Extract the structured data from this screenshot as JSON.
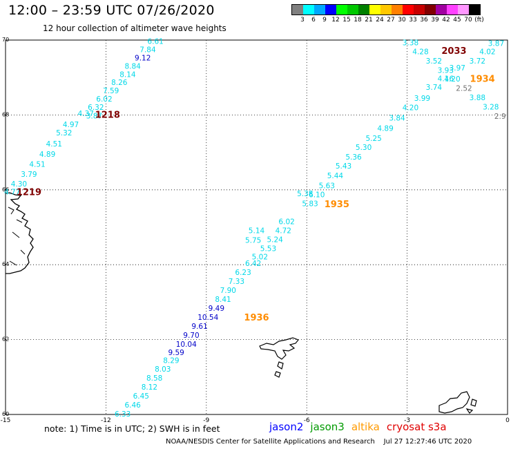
{
  "header": {
    "title": "12:00 – 23:59 UTC 07/26/2020",
    "subtitle": "12 hour collection of altimeter wave heights"
  },
  "legend": {
    "colors": [
      "#808080",
      "#00ffff",
      "#00a8ff",
      "#0000ff",
      "#00ff00",
      "#00c800",
      "#008000",
      "#ffff00",
      "#ffc800",
      "#ff8000",
      "#ff0000",
      "#c80000",
      "#800000",
      "#a000a0",
      "#ff40ff",
      "#ff96ff",
      "#000000"
    ],
    "ticks": [
      "3",
      "6",
      "9",
      "12",
      "15",
      "18",
      "21",
      "24",
      "27",
      "30",
      "33",
      "36",
      "39",
      "42",
      "45",
      "70",
      "(ft)"
    ]
  },
  "map": {
    "lon_labels": [
      "-15",
      "-12",
      "-9",
      "-6",
      "-3",
      "0"
    ],
    "lat_labels": [
      "70",
      "68",
      "66",
      "64",
      "62",
      "60"
    ],
    "readings": [
      {
        "lon": -10.52,
        "lat": 69.97,
        "v": "6.61",
        "c": "#00d8e8"
      },
      {
        "lon": -10.75,
        "lat": 69.75,
        "v": "7.84",
        "c": "#00d8e8"
      },
      {
        "lon": -10.9,
        "lat": 69.53,
        "v": "9.12",
        "c": "#0000c8"
      },
      {
        "lon": -11.2,
        "lat": 69.31,
        "v": "8.84",
        "c": "#00d8e8"
      },
      {
        "lon": -11.35,
        "lat": 69.09,
        "v": "8.14",
        "c": "#00d8e8"
      },
      {
        "lon": -11.6,
        "lat": 68.87,
        "v": "8.26",
        "c": "#00d8e8"
      },
      {
        "lon": -11.85,
        "lat": 68.65,
        "v": "7.59",
        "c": "#00d8e8"
      },
      {
        "lon": -12.05,
        "lat": 68.43,
        "v": "6.02",
        "c": "#00d8e8"
      },
      {
        "lon": -12.3,
        "lat": 68.21,
        "v": "6.32",
        "c": "#00d8e8"
      },
      {
        "lon": -12.6,
        "lat": 68.04,
        "v": "4.37",
        "c": "#00d8e8"
      },
      {
        "lon": -12.35,
        "lat": 67.98,
        "v": "3.87",
        "c": "#00d8e8"
      },
      {
        "lon": -13.05,
        "lat": 67.75,
        "v": "4.97",
        "c": "#00d8e8"
      },
      {
        "lon": -13.25,
        "lat": 67.53,
        "v": "5.32",
        "c": "#00d8e8"
      },
      {
        "lon": -13.55,
        "lat": 67.23,
        "v": "4.51",
        "c": "#00d8e8"
      },
      {
        "lon": -13.75,
        "lat": 66.96,
        "v": "4.89",
        "c": "#00d8e8"
      },
      {
        "lon": -14.05,
        "lat": 66.69,
        "v": "4.51",
        "c": "#00d8e8"
      },
      {
        "lon": -14.3,
        "lat": 66.42,
        "v": "3.79",
        "c": "#00d8e8"
      },
      {
        "lon": -14.6,
        "lat": 66.16,
        "v": "4.30",
        "c": "#00d8e8"
      },
      {
        "lon": -14.8,
        "lat": 65.95,
        "v": "4.77",
        "c": "#00d8e8"
      },
      {
        "lon": -7.6,
        "lat": 64.04,
        "v": "6.42",
        "c": "#00d8e8"
      },
      {
        "lon": -7.9,
        "lat": 63.8,
        "v": "6.23",
        "c": "#00d8e8"
      },
      {
        "lon": -8.1,
        "lat": 63.56,
        "v": "7.33",
        "c": "#00d8e8"
      },
      {
        "lon": -8.35,
        "lat": 63.32,
        "v": "7.90",
        "c": "#00d8e8"
      },
      {
        "lon": -8.5,
        "lat": 63.08,
        "v": "8.41",
        "c": "#00d8e8"
      },
      {
        "lon": -8.7,
        "lat": 62.84,
        "v": "9.49",
        "c": "#0000c8"
      },
      {
        "lon": -8.95,
        "lat": 62.6,
        "v": "10.54",
        "c": "#0000c8"
      },
      {
        "lon": -9.2,
        "lat": 62.36,
        "v": "9.61",
        "c": "#0000c8"
      },
      {
        "lon": -9.45,
        "lat": 62.12,
        "v": "9.70",
        "c": "#0000c8"
      },
      {
        "lon": -9.6,
        "lat": 61.88,
        "v": "10.04",
        "c": "#0000c8"
      },
      {
        "lon": -9.9,
        "lat": 61.66,
        "v": "9.59",
        "c": "#0000c8"
      },
      {
        "lon": -10.05,
        "lat": 61.45,
        "v": "8.29",
        "c": "#00d8e8"
      },
      {
        "lon": -10.3,
        "lat": 61.22,
        "v": "8.03",
        "c": "#00d8e8"
      },
      {
        "lon": -10.55,
        "lat": 60.98,
        "v": "8.58",
        "c": "#00d8e8"
      },
      {
        "lon": -10.7,
        "lat": 60.74,
        "v": "8.12",
        "c": "#00d8e8"
      },
      {
        "lon": -10.95,
        "lat": 60.5,
        "v": "6.45",
        "c": "#00d8e8"
      },
      {
        "lon": -11.2,
        "lat": 60.26,
        "v": "6.46",
        "c": "#00d8e8"
      },
      {
        "lon": -11.5,
        "lat": 60.02,
        "v": "6.33",
        "c": "#00d8e8"
      },
      {
        "lon": -2.9,
        "lat": 69.94,
        "v": "3.38",
        "c": "#00d8e8"
      },
      {
        "lon": -2.6,
        "lat": 69.7,
        "v": "4.28",
        "c": "#00d8e8"
      },
      {
        "lon": -2.2,
        "lat": 69.45,
        "v": "3.52",
        "c": "#00d8e8"
      },
      {
        "lon": -1.85,
        "lat": 69.2,
        "v": "3.93",
        "c": "#00d8e8"
      },
      {
        "lon": -1.5,
        "lat": 69.26,
        "v": "3.97",
        "c": "#00d8e8"
      },
      {
        "lon": -1.85,
        "lat": 68.98,
        "v": "4.16",
        "c": "#00d8e8"
      },
      {
        "lon": -1.65,
        "lat": 68.97,
        "v": "4.20",
        "c": "#00d8e8"
      },
      {
        "lon": -2.2,
        "lat": 68.75,
        "v": "3.74",
        "c": "#00d8e8"
      },
      {
        "lon": -2.55,
        "lat": 68.45,
        "v": "3.99",
        "c": "#00d8e8"
      },
      {
        "lon": -2.9,
        "lat": 68.2,
        "v": "4.20",
        "c": "#00d8e8"
      },
      {
        "lon": -3.3,
        "lat": 67.92,
        "v": "3.84",
        "c": "#00d8e8"
      },
      {
        "lon": -3.65,
        "lat": 67.65,
        "v": "4.89",
        "c": "#00d8e8"
      },
      {
        "lon": -4.0,
        "lat": 67.38,
        "v": "5.25",
        "c": "#00d8e8"
      },
      {
        "lon": -4.3,
        "lat": 67.14,
        "v": "5.30",
        "c": "#00d8e8"
      },
      {
        "lon": -4.6,
        "lat": 66.88,
        "v": "5.36",
        "c": "#00d8e8"
      },
      {
        "lon": -4.9,
        "lat": 66.64,
        "v": "5.43",
        "c": "#00d8e8"
      },
      {
        "lon": -5.15,
        "lat": 66.38,
        "v": "5.44",
        "c": "#00d8e8"
      },
      {
        "lon": -5.4,
        "lat": 66.12,
        "v": "5.63",
        "c": "#00d8e8"
      },
      {
        "lon": -5.7,
        "lat": 65.88,
        "v": "6.10",
        "c": "#00d8e8"
      },
      {
        "lon": -5.9,
        "lat": 65.64,
        "v": "5.83",
        "c": "#00d8e8"
      },
      {
        "lon": -6.05,
        "lat": 65.9,
        "v": "5.38",
        "c": "#00d8e8"
      },
      {
        "lon": -6.6,
        "lat": 65.16,
        "v": "6.02",
        "c": "#00d8e8"
      },
      {
        "lon": -6.7,
        "lat": 64.92,
        "v": "4.72",
        "c": "#00d8e8"
      },
      {
        "lon": -6.95,
        "lat": 64.68,
        "v": "5.24",
        "c": "#00d8e8"
      },
      {
        "lon": -7.15,
        "lat": 64.44,
        "v": "5.53",
        "c": "#00d8e8"
      },
      {
        "lon": -7.4,
        "lat": 64.22,
        "v": "5.02",
        "c": "#00d8e8"
      },
      {
        "lon": -7.5,
        "lat": 64.92,
        "v": "5.14",
        "c": "#00d8e8"
      },
      {
        "lon": -7.6,
        "lat": 64.66,
        "v": "5.75",
        "c": "#00d8e8"
      },
      {
        "lon": -0.1,
        "lat": 69.92,
        "v": "3.87",
        "c": "#00d8e8"
      },
      {
        "lon": -0.6,
        "lat": 69.7,
        "v": "4.02",
        "c": "#00d8e8"
      },
      {
        "lon": -0.9,
        "lat": 69.45,
        "v": "3.72",
        "c": "#00d8e8"
      },
      {
        "lon": -1.3,
        "lat": 68.72,
        "v": "2.52",
        "c": "#707070"
      },
      {
        "lon": -0.9,
        "lat": 68.47,
        "v": "3.88",
        "c": "#00d8e8"
      },
      {
        "lon": -0.5,
        "lat": 68.22,
        "v": "3.28",
        "c": "#00d8e8"
      },
      {
        "lon": -0.05,
        "lat": 67.97,
        "v": "2.9",
        "c": "#707070"
      }
    ],
    "times": [
      {
        "lon": -11.95,
        "lat": 68.02,
        "t": "1218",
        "c": "#800000"
      },
      {
        "lon": -14.3,
        "lat": 65.95,
        "t": "1219",
        "c": "#800000"
      },
      {
        "lon": -1.6,
        "lat": 69.72,
        "t": "2033",
        "c": "#800000"
      },
      {
        "lon": -0.75,
        "lat": 68.98,
        "t": "1934",
        "c": "#ff8c00"
      },
      {
        "lon": -5.1,
        "lat": 65.63,
        "t": "1935",
        "c": "#ff8c00"
      },
      {
        "lon": -7.5,
        "lat": 62.6,
        "t": "1936",
        "c": "#ff8c00"
      }
    ]
  },
  "footer": {
    "note": "note:  1) Time is in UTC;  2) SWH is in feet",
    "satellites": [
      {
        "name": "jason2",
        "color": "#0000ff"
      },
      {
        "name": "jason3",
        "color": "#009a00"
      },
      {
        "name": "altika",
        "color": "#ff9a00"
      },
      {
        "name": "cryosat s3a",
        "color": "#e00000"
      }
    ],
    "credit": "NOAA/NESDIS Center for Satellite Applications and Research",
    "timestamp": "Jul 27 12:27:46 UTC 2020"
  }
}
